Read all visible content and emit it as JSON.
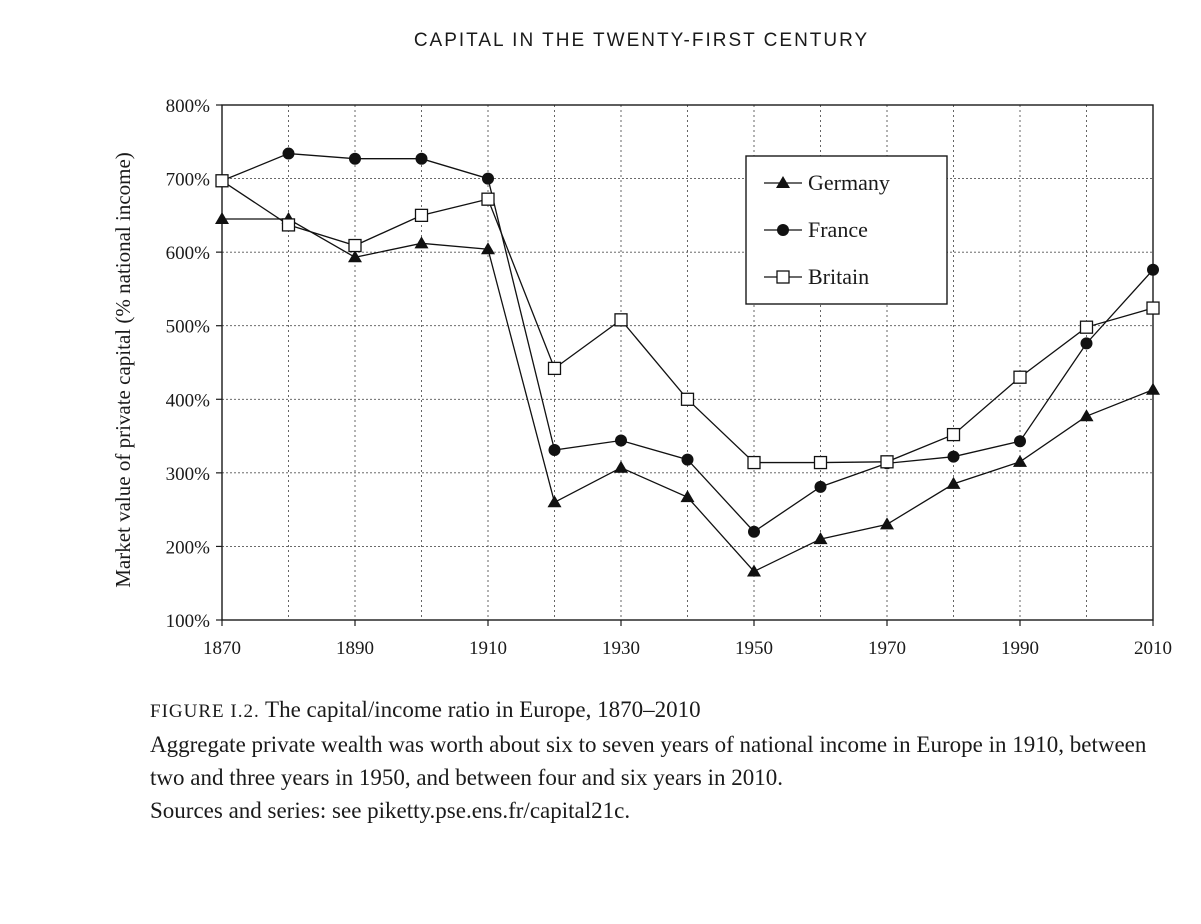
{
  "running_head": "CAPITAL IN THE TWENTY-FIRST CENTURY",
  "caption": {
    "figure_label": "FIGURE I.2.",
    "figure_title": "The capital/income ratio in Europe, 1870–2010",
    "description": "Aggregate private wealth was worth about six to seven years of national income in Europe in 1910, between two and three years in 1950, and between four and six years in 2010.",
    "sources": "Sources and series: see piketty.pse.ens.fr/capital21c."
  },
  "chart_data": {
    "type": "line",
    "title": "",
    "xlabel": "",
    "ylabel": "Market value of private capital (% national income)",
    "xlim": [
      1870,
      2010
    ],
    "ylim": [
      100,
      800
    ],
    "x_ticks": [
      1870,
      1890,
      1910,
      1930,
      1950,
      1970,
      1990,
      2010
    ],
    "x_tick_labels": [
      "1870",
      "1890",
      "1910",
      "1930",
      "1950",
      "1970",
      "1990",
      "2010"
    ],
    "x_minor_gridlines": [
      1880,
      1900,
      1920,
      1940,
      1960,
      1980,
      2000
    ],
    "y_ticks": [
      100,
      200,
      300,
      400,
      500,
      600,
      700,
      800
    ],
    "y_tick_labels": [
      "100%",
      "200%",
      "300%",
      "400%",
      "500%",
      "600%",
      "700%",
      "800%"
    ],
    "grid": true,
    "legend_position": "top-right",
    "x": [
      1870,
      1880,
      1890,
      1900,
      1910,
      1920,
      1930,
      1940,
      1950,
      1960,
      1970,
      1980,
      1990,
      2000,
      2010
    ],
    "series": [
      {
        "name": "Germany",
        "marker": "triangle",
        "x": [
          1870,
          1880,
          1890,
          1900,
          1910,
          1920,
          1930,
          1940,
          1950,
          1960,
          1970,
          1980,
          1990,
          2000,
          2010
        ],
        "values": [
          645,
          645,
          593,
          612,
          604,
          260,
          307,
          267,
          166,
          210,
          230,
          285,
          315,
          377,
          413
        ]
      },
      {
        "name": "France",
        "marker": "circle",
        "x": [
          1870,
          1880,
          1890,
          1900,
          1910,
          1920,
          1930,
          1940,
          1950,
          1960,
          1970,
          1980,
          1990,
          2000,
          2010
        ],
        "values": [
          697,
          734,
          727,
          727,
          700,
          331,
          344,
          318,
          220,
          281,
          313,
          322,
          343,
          476,
          576
        ]
      },
      {
        "name": "Britain",
        "marker": "square",
        "x": [
          1870,
          1880,
          1890,
          1900,
          1910,
          1920,
          1930,
          1940,
          1950,
          1960,
          1970,
          1980,
          1990,
          2000,
          2010
        ],
        "values": [
          697,
          637,
          609,
          650,
          672,
          442,
          508,
          400,
          314,
          314,
          315,
          352,
          430,
          498,
          524
        ]
      }
    ]
  }
}
